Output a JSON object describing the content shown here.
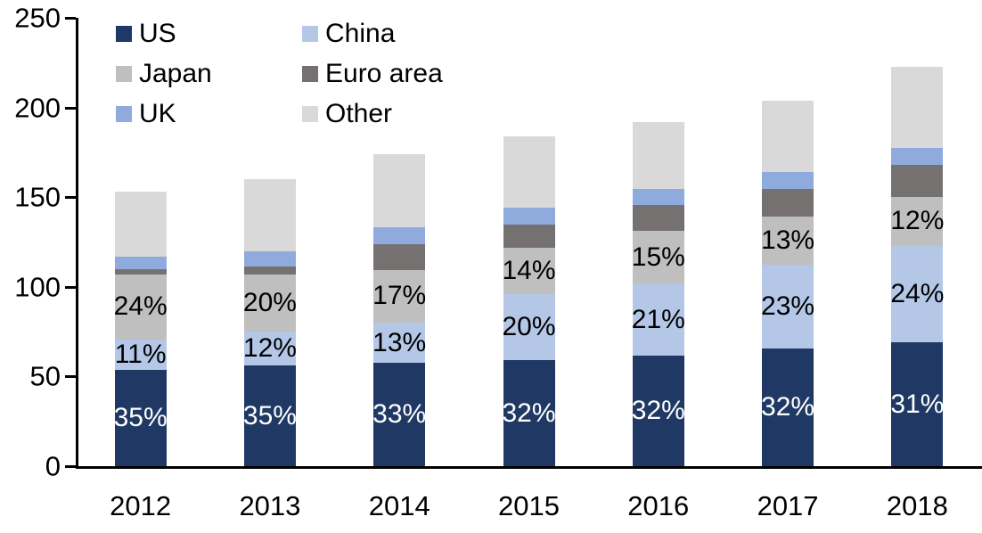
{
  "chart_data": {
    "type": "bar",
    "stacked": true,
    "title": "",
    "xlabel": "",
    "ylabel": "",
    "categories": [
      "2012",
      "2013",
      "2014",
      "2015",
      "2016",
      "2017",
      "2018"
    ],
    "series": [
      {
        "name": "US",
        "color": "#1F3864",
        "values": [
          53.5,
          56,
          57.5,
          59,
          61.5,
          65.5,
          69
        ],
        "labels": [
          "35%",
          "35%",
          "33%",
          "32%",
          "32%",
          "32%",
          "31%"
        ],
        "label_color": "#FFFFFF"
      },
      {
        "name": "China",
        "color": "#B4C7E7",
        "values": [
          17,
          19,
          22.5,
          37,
          40.5,
          47,
          54
        ],
        "labels": [
          "11%",
          "12%",
          "13%",
          "20%",
          "21%",
          "23%",
          "24%"
        ],
        "label_color": "#000000"
      },
      {
        "name": "Japan",
        "color": "#BFBFBF",
        "values": [
          36.5,
          32,
          29.5,
          26,
          29,
          26.5,
          27
        ],
        "labels": [
          "24%",
          "20%",
          "17%",
          "14%",
          "15%",
          "13%",
          "12%"
        ],
        "label_color": "#000000"
      },
      {
        "name": "Euro area",
        "color": "#767171",
        "values": [
          3,
          4.5,
          14.5,
          12.5,
          14.5,
          15.5,
          18
        ],
        "labels": null,
        "label_color": "#000000"
      },
      {
        "name": "UK",
        "color": "#8FAADC",
        "values": [
          7,
          8.5,
          9,
          9.5,
          9,
          9.5,
          9.5
        ],
        "labels": null,
        "label_color": "#000000"
      },
      {
        "name": "Other",
        "color": "#D9D9D9",
        "values": [
          36,
          40,
          41,
          40,
          37.5,
          40,
          45
        ],
        "labels": null,
        "label_color": "#000000"
      }
    ],
    "totals": [
      153,
      160,
      174,
      184,
      192,
      204,
      223
    ],
    "ylim": [
      0,
      250
    ],
    "yticks": [
      0,
      50,
      100,
      150,
      200,
      250
    ],
    "ytick_labels": [
      "0",
      "50",
      "100",
      "150",
      "200",
      "250"
    ],
    "grid": false,
    "legend_position": "top-left",
    "legend_order": [
      "US",
      "China",
      "Japan",
      "Euro area",
      "UK",
      "Other"
    ],
    "axis_color": "#000000",
    "background_color": "#FFFFFF"
  }
}
